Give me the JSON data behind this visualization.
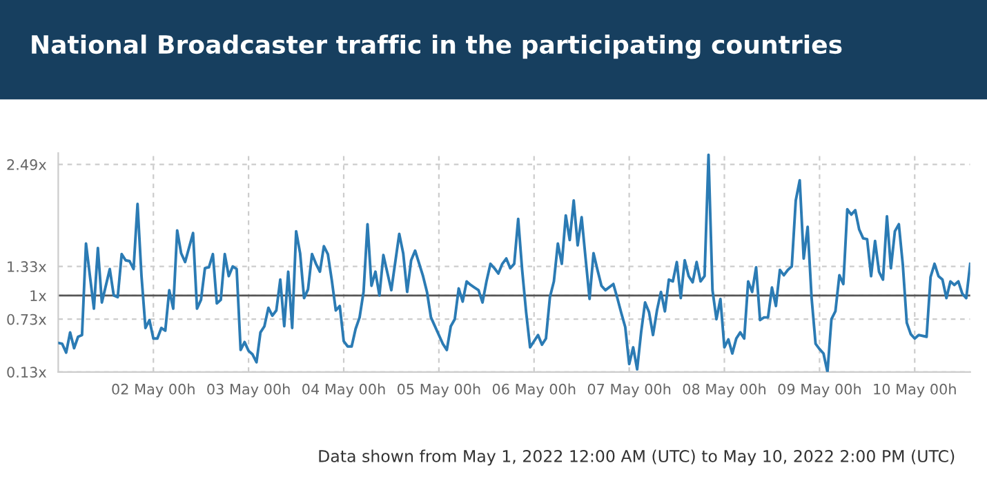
{
  "chart_data": {
    "type": "line",
    "title": "National Broadcaster traffic in the participating countries",
    "x": [
      "2022-05-01T00:00",
      "2022-05-01T01:00",
      "2022-05-01T02:00",
      "2022-05-01T03:00",
      "2022-05-01T04:00",
      "2022-05-01T05:00",
      "2022-05-01T06:00",
      "2022-05-01T07:00",
      "2022-05-01T09:00",
      "2022-05-01T10:00",
      "2022-05-01T11:00",
      "2022-05-01T13:00",
      "2022-05-01T14:00",
      "2022-05-01T15:00",
      "2022-05-01T16:00",
      "2022-05-01T17:00",
      "2022-05-01T18:00",
      "2022-05-01T19:00",
      "2022-05-01T20:00",
      "2022-05-01T21:00",
      "2022-05-01T22:00",
      "2022-05-01T23:00",
      "2022-05-02T00:00",
      "2022-05-02T01:00",
      "2022-05-02T02:00",
      "2022-05-02T03:00",
      "2022-05-02T04:00",
      "2022-05-02T05:00",
      "2022-05-02T06:00",
      "2022-05-02T07:00",
      "2022-05-02T08:00",
      "2022-05-02T10:00",
      "2022-05-02T11:00",
      "2022-05-02T12:00",
      "2022-05-02T13:00",
      "2022-05-02T14:00",
      "2022-05-02T15:00",
      "2022-05-02T16:00",
      "2022-05-02T17:00",
      "2022-05-02T18:00",
      "2022-05-02T19:00",
      "2022-05-02T20:00",
      "2022-05-02T21:00",
      "2022-05-02T22:00",
      "2022-05-02T23:00",
      "2022-05-03T00:00",
      "2022-05-03T01:00",
      "2022-05-03T02:00",
      "2022-05-03T03:00",
      "2022-05-03T04:00",
      "2022-05-03T05:00",
      "2022-05-03T06:00",
      "2022-05-03T07:00",
      "2022-05-03T08:00",
      "2022-05-03T09:00",
      "2022-05-03T10:00",
      "2022-05-03T11:00",
      "2022-05-03T12:00",
      "2022-05-03T13:00",
      "2022-05-03T14:00",
      "2022-05-03T15:00",
      "2022-05-03T16:00",
      "2022-05-03T17:00",
      "2022-05-03T18:00",
      "2022-05-03T19:00",
      "2022-05-03T20:00",
      "2022-05-03T21:00",
      "2022-05-03T22:00",
      "2022-05-03T23:00",
      "2022-05-04T00:00",
      "2022-05-04T01:00",
      "2022-05-04T02:00",
      "2022-05-04T03:00",
      "2022-05-04T04:00",
      "2022-05-04T05:00",
      "2022-05-04T06:00",
      "2022-05-04T07:00",
      "2022-05-04T08:00",
      "2022-05-04T09:00",
      "2022-05-04T10:00",
      "2022-05-04T12:00",
      "2022-05-04T14:00",
      "2022-05-04T15:00",
      "2022-05-04T16:00",
      "2022-05-04T17:00",
      "2022-05-04T18:00",
      "2022-05-04T20:00",
      "2022-05-04T21:00",
      "2022-05-04T22:00",
      "2022-05-05T00:00",
      "2022-05-05T01:00",
      "2022-05-05T02:00",
      "2022-05-05T03:00",
      "2022-05-05T04:00",
      "2022-05-05T05:00",
      "2022-05-05T06:00",
      "2022-05-05T07:00",
      "2022-05-05T08:00",
      "2022-05-05T09:00",
      "2022-05-05T10:00",
      "2022-05-05T11:00",
      "2022-05-05T12:00",
      "2022-05-05T13:00",
      "2022-05-05T14:00",
      "2022-05-05T15:00",
      "2022-05-05T16:00",
      "2022-05-05T17:00",
      "2022-05-05T18:00",
      "2022-05-05T19:00",
      "2022-05-05T20:00",
      "2022-05-05T21:00",
      "2022-05-05T22:00",
      "2022-05-05T23:00",
      "2022-05-06T01:00",
      "2022-05-06T02:00",
      "2022-05-06T03:00",
      "2022-05-06T04:00",
      "2022-05-06T05:00",
      "2022-05-06T06:00",
      "2022-05-06T07:00",
      "2022-05-06T08:00",
      "2022-05-06T09:00",
      "2022-05-06T10:00",
      "2022-05-06T11:00",
      "2022-05-06T12:00",
      "2022-05-06T13:00",
      "2022-05-06T14:00",
      "2022-05-06T15:00",
      "2022-05-06T16:00",
      "2022-05-06T17:00",
      "2022-05-06T18:00",
      "2022-05-06T20:00",
      "2022-05-06T21:00",
      "2022-05-06T22:00",
      "2022-05-06T23:00",
      "2022-05-07T00:00",
      "2022-05-07T01:00",
      "2022-05-07T02:00",
      "2022-05-07T03:00",
      "2022-05-07T04:00",
      "2022-05-07T05:00",
      "2022-05-07T06:00",
      "2022-05-07T07:00",
      "2022-05-07T08:00",
      "2022-05-07T09:00",
      "2022-05-07T10:00",
      "2022-05-07T11:00",
      "2022-05-07T12:00",
      "2022-05-07T13:00",
      "2022-05-07T14:00",
      "2022-05-07T15:00",
      "2022-05-07T16:00",
      "2022-05-07T17:00",
      "2022-05-07T18:00",
      "2022-05-07T19:00",
      "2022-05-07T20:00",
      "2022-05-07T21:00",
      "2022-05-07T22:00",
      "2022-05-07T23:00",
      "2022-05-08T00:00",
      "2022-05-08T01:00",
      "2022-05-08T02:00",
      "2022-05-08T03:00",
      "2022-05-08T04:00",
      "2022-05-08T05:00",
      "2022-05-08T06:00",
      "2022-05-08T07:00",
      "2022-05-08T08:00",
      "2022-05-08T09:00",
      "2022-05-08T10:00",
      "2022-05-08T11:00",
      "2022-05-08T12:00",
      "2022-05-08T13:00",
      "2022-05-08T14:00",
      "2022-05-08T15:00",
      "2022-05-08T16:00",
      "2022-05-08T17:00",
      "2022-05-08T18:00",
      "2022-05-08T19:00",
      "2022-05-08T20:00",
      "2022-05-08T21:00",
      "2022-05-08T22:00",
      "2022-05-08T23:00",
      "2022-05-09T00:00",
      "2022-05-09T01:00",
      "2022-05-09T02:00",
      "2022-05-09T03:00",
      "2022-05-09T04:00",
      "2022-05-09T05:00",
      "2022-05-09T06:00",
      "2022-05-09T07:00",
      "2022-05-09T08:00",
      "2022-05-09T09:00",
      "2022-05-09T10:00",
      "2022-05-09T11:00",
      "2022-05-09T12:00",
      "2022-05-09T13:00",
      "2022-05-09T14:00",
      "2022-05-09T15:00",
      "2022-05-09T16:00",
      "2022-05-09T17:00",
      "2022-05-09T18:00",
      "2022-05-09T19:00",
      "2022-05-09T20:00",
      "2022-05-09T21:00",
      "2022-05-09T22:00",
      "2022-05-09T23:00",
      "2022-05-10T00:00",
      "2022-05-10T01:00",
      "2022-05-10T03:00",
      "2022-05-10T04:00",
      "2022-05-10T05:00",
      "2022-05-10T06:00",
      "2022-05-10T07:00",
      "2022-05-10T08:00",
      "2022-05-10T09:00",
      "2022-05-10T10:00",
      "2022-05-10T11:00",
      "2022-05-10T12:00",
      "2022-05-10T13:00",
      "2022-05-10T14:00"
    ],
    "series": [
      {
        "color": "#2b7bb4",
        "values": [
          0.46,
          0.45,
          0.35,
          0.58,
          0.4,
          0.53,
          0.55,
          1.59,
          0.85,
          1.54,
          0.92,
          1.3,
          1.0,
          0.98,
          1.47,
          1.4,
          1.39,
          1.3,
          2.04,
          1.22,
          0.63,
          0.72,
          0.51,
          0.51,
          0.63,
          0.6,
          1.06,
          0.85,
          1.74,
          1.48,
          1.38,
          1.71,
          0.85,
          0.95,
          1.31,
          1.32,
          1.47,
          0.91,
          0.95,
          1.47,
          1.22,
          1.33,
          1.3,
          0.38,
          0.47,
          0.37,
          0.33,
          0.24,
          0.58,
          0.65,
          0.86,
          0.77,
          0.83,
          1.18,
          0.65,
          1.27,
          0.63,
          1.73,
          1.48,
          0.97,
          1.07,
          1.47,
          1.36,
          1.27,
          1.56,
          1.47,
          1.17,
          0.83,
          0.88,
          0.48,
          0.42,
          0.42,
          0.62,
          0.75,
          1.04,
          1.81,
          1.11,
          1.27,
          1.0,
          1.46,
          1.06,
          1.7,
          1.48,
          1.04,
          1.4,
          1.51,
          1.22,
          1.04,
          0.75,
          0.55,
          0.45,
          0.38,
          0.65,
          0.73,
          1.08,
          0.93,
          1.16,
          1.12,
          1.09,
          1.06,
          0.92,
          1.16,
          1.36,
          1.31,
          1.25,
          1.36,
          1.42,
          1.31,
          1.36,
          1.87,
          1.29,
          0.81,
          0.41,
          0.55,
          0.44,
          0.51,
          0.98,
          1.16,
          1.59,
          1.36,
          1.91,
          1.63,
          2.08,
          1.57,
          1.89,
          1.42,
          0.96,
          1.48,
          1.29,
          1.11,
          1.06,
          1.13,
          0.97,
          0.8,
          0.64,
          0.22,
          0.41,
          0.16,
          0.58,
          0.92,
          0.81,
          0.55,
          0.83,
          1.04,
          0.82,
          1.18,
          1.16,
          1.38,
          0.97,
          1.4,
          1.22,
          1.15,
          1.38,
          1.16,
          1.22,
          2.6,
          1.06,
          0.73,
          0.96,
          0.41,
          0.5,
          0.34,
          0.51,
          0.58,
          0.51,
          1.16,
          1.04,
          1.32,
          0.72,
          0.75,
          0.75,
          1.09,
          0.88,
          1.29,
          1.23,
          1.29,
          1.33,
          2.08,
          2.31,
          1.42,
          1.78,
          0.97,
          0.45,
          0.39,
          0.34,
          0.13,
          0.73,
          0.82,
          1.23,
          1.13,
          1.98,
          1.92,
          1.97,
          1.75,
          1.65,
          1.64,
          1.22,
          1.62,
          1.27,
          1.18,
          1.9,
          1.31,
          1.73,
          1.81,
          1.35,
          0.69,
          0.56,
          0.51,
          0.55,
          0.53,
          1.21,
          1.36,
          1.22,
          1.18,
          0.97,
          1.16,
          1.12,
          1.16,
          1.02,
          0.97,
          1.36
        ]
      }
    ],
    "xlim": [
      "2022-05-01T00:00",
      "2022-05-10T14:00"
    ],
    "xticks": [
      {
        "value": "2022-05-02",
        "label": "02 May 00h"
      },
      {
        "value": "2022-05-03",
        "label": "03 May 00h"
      },
      {
        "value": "2022-05-04",
        "label": "04 May 00h"
      },
      {
        "value": "2022-05-05",
        "label": "05 May 00h"
      },
      {
        "value": "2022-05-06",
        "label": "06 May 00h"
      },
      {
        "value": "2022-05-07",
        "label": "07 May 00h"
      },
      {
        "value": "2022-05-08",
        "label": "08 May 00h"
      },
      {
        "value": "2022-05-09",
        "label": "09 May 00h"
      },
      {
        "value": "2022-05-10",
        "label": "10 May 00h"
      }
    ],
    "ylim": [
      0.13,
      2.62
    ],
    "yticks": [
      {
        "value": 0.13,
        "label": "0.13x"
      },
      {
        "value": 0.73,
        "label": "0.73x"
      },
      {
        "value": 1,
        "label": "1x"
      },
      {
        "value": 1.33,
        "label": "1.33x"
      },
      {
        "value": 2.49,
        "label": "2.49x"
      }
    ],
    "ref_lines": [
      {
        "axis": "y",
        "value": 1,
        "color": "#555555"
      }
    ],
    "grid": true,
    "legend": false,
    "annotations": [
      "Data shown from May 1, 2022 12:00 AM (UTC) to May 10, 2022 2:00 PM (UTC)"
    ]
  }
}
